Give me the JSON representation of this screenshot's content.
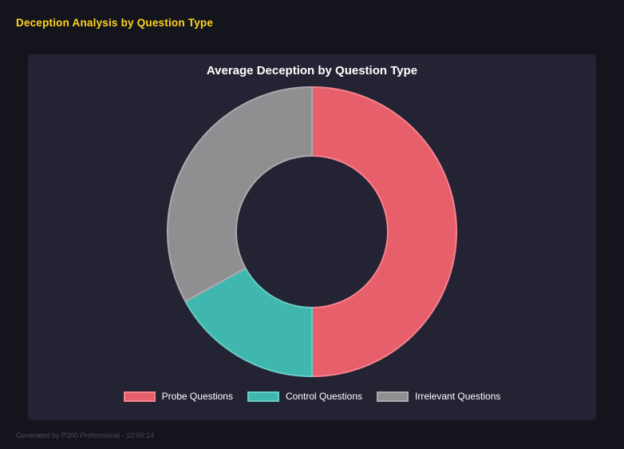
{
  "page": {
    "title": "Deception Analysis by Question Type",
    "footer": "Generated by P300 Professional - 10:05:14",
    "colors": {
      "background": "#14141d",
      "panel": "#232334",
      "page_title": "#ffd41e",
      "chart_text": "#ffffff",
      "footer_text": "#4b4b57"
    }
  },
  "chart_data": {
    "type": "pie",
    "subtype": "doughnut",
    "title": "Average Deception by Question Type",
    "labels": [
      "Probe Questions",
      "Control Questions",
      "Irrelevant Questions"
    ],
    "values": [
      50,
      17,
      33
    ],
    "colors": [
      "#e75f6b",
      "#40b7ae",
      "#8f8f92"
    ],
    "border_colors": [
      "#f5828e",
      "#66cdc4",
      "#aaaaad"
    ],
    "legend_position": "bottom",
    "start_angle": 0,
    "direction": "clockwise",
    "inner_radius_ratio": 0.525
  }
}
